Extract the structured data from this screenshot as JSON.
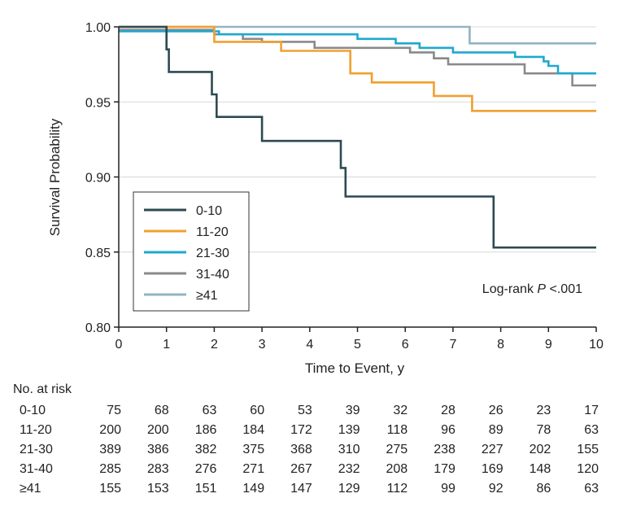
{
  "chart_data": {
    "type": "line",
    "subtype": "kaplan-meier step",
    "title": "",
    "xlabel": "Time to Event, y",
    "ylabel": "Survival Probability",
    "xlim": [
      0,
      10
    ],
    "ylim": [
      0.8,
      1.0
    ],
    "xticks": [
      "0",
      "1",
      "2",
      "3",
      "4",
      "5",
      "6",
      "7",
      "8",
      "9",
      "10"
    ],
    "yticks": [
      "0.80",
      "0.85",
      "0.90",
      "0.95",
      "1.00"
    ],
    "grid": "horizontal",
    "legend_position": "lower-left",
    "annotation": {
      "prefix": "Log-rank ",
      "italic": "P",
      "suffix": " <.001"
    },
    "series": [
      {
        "name": "0-10",
        "color": "#2c4a52",
        "steps": [
          [
            0,
            1.0
          ],
          [
            1.0,
            0.985
          ],
          [
            1.05,
            0.97
          ],
          [
            1.95,
            0.955
          ],
          [
            2.05,
            0.94
          ],
          [
            3.0,
            0.924
          ],
          [
            4.65,
            0.906
          ],
          [
            4.75,
            0.887
          ],
          [
            7.85,
            0.853
          ],
          [
            10,
            0.853
          ]
        ]
      },
      {
        "name": "11-20",
        "color": "#f0a030",
        "steps": [
          [
            0,
            1.0
          ],
          [
            2.0,
            0.99
          ],
          [
            3.4,
            0.984
          ],
          [
            4.85,
            0.969
          ],
          [
            5.3,
            0.963
          ],
          [
            6.6,
            0.954
          ],
          [
            7.4,
            0.944
          ],
          [
            10,
            0.944
          ]
        ]
      },
      {
        "name": "21-30",
        "color": "#1fa8d0",
        "steps": [
          [
            0,
            0.997
          ],
          [
            2.1,
            0.995
          ],
          [
            5.0,
            0.992
          ],
          [
            5.8,
            0.989
          ],
          [
            6.3,
            0.986
          ],
          [
            7.0,
            0.983
          ],
          [
            8.3,
            0.98
          ],
          [
            8.9,
            0.977
          ],
          [
            9.0,
            0.974
          ],
          [
            9.2,
            0.969
          ],
          [
            10,
            0.969
          ]
        ]
      },
      {
        "name": "31-40",
        "color": "#8a8a8a",
        "steps": [
          [
            0,
            0.998
          ],
          [
            2.0,
            0.995
          ],
          [
            2.6,
            0.992
          ],
          [
            3.0,
            0.99
          ],
          [
            4.1,
            0.986
          ],
          [
            6.1,
            0.983
          ],
          [
            6.6,
            0.979
          ],
          [
            6.9,
            0.975
          ],
          [
            8.5,
            0.969
          ],
          [
            9.5,
            0.961
          ],
          [
            10,
            0.961
          ]
        ]
      },
      {
        "name": "≥41",
        "color": "#92b4c4",
        "steps": [
          [
            0,
            1.0
          ],
          [
            7.35,
            0.989
          ],
          [
            10,
            0.989
          ]
        ]
      }
    ],
    "risk_table": {
      "title": "No. at risk",
      "times": [
        "0",
        "1",
        "2",
        "3",
        "4",
        "5",
        "6",
        "7",
        "8",
        "9",
        "10"
      ],
      "rows": [
        {
          "label": "0-10",
          "values": [
            "75",
            "68",
            "63",
            "60",
            "53",
            "39",
            "32",
            "28",
            "26",
            "23",
            "17"
          ]
        },
        {
          "label": "11-20",
          "values": [
            "200",
            "200",
            "186",
            "184",
            "172",
            "139",
            "118",
            "96",
            "89",
            "78",
            "63"
          ]
        },
        {
          "label": "21-30",
          "values": [
            "389",
            "386",
            "382",
            "375",
            "368",
            "310",
            "275",
            "238",
            "227",
            "202",
            "155"
          ]
        },
        {
          "label": "31-40",
          "values": [
            "285",
            "283",
            "276",
            "271",
            "267",
            "232",
            "208",
            "179",
            "169",
            "148",
            "120"
          ]
        },
        {
          "label": "≥41",
          "values": [
            "155",
            "153",
            "151",
            "149",
            "147",
            "129",
            "112",
            "99",
            "92",
            "86",
            "63"
          ]
        }
      ]
    }
  }
}
